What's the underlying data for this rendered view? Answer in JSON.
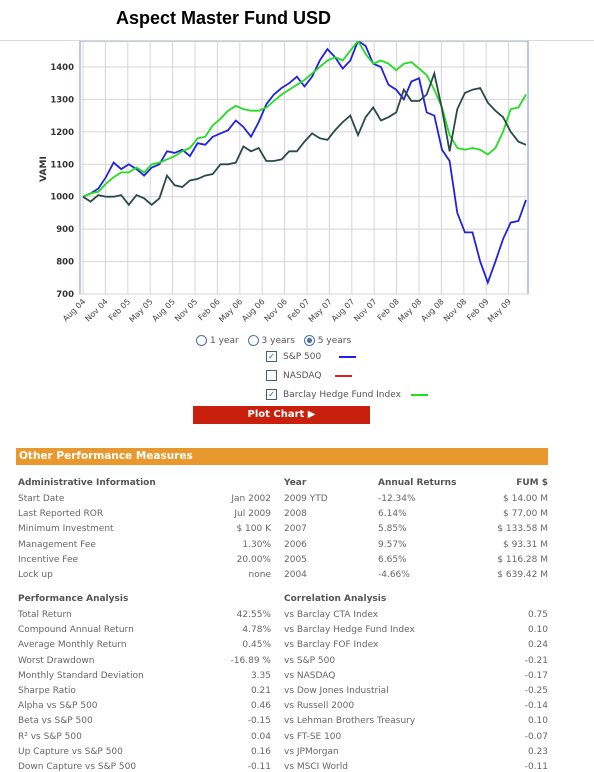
{
  "title": "Aspect Master Fund USD",
  "chart_data": {
    "type": "line",
    "ylabel": "VAMI",
    "ylim": [
      700,
      1480
    ],
    "yticks": [
      700,
      800,
      900,
      1000,
      1100,
      1200,
      1300,
      1400
    ],
    "x_labels": [
      "Aug 04",
      "Nov 04",
      "Feb 05",
      "May 05",
      "Aug 05",
      "Nov 05",
      "Feb 06",
      "May 06",
      "Aug 06",
      "Nov 06",
      "Feb 07",
      "May 07",
      "Aug 07",
      "Nov 07",
      "Feb 08",
      "May 08",
      "Aug 08",
      "Nov 08",
      "Feb 09",
      "May 09"
    ],
    "grid": true,
    "series": [
      {
        "name": "S&P 500",
        "color": "#2222dd",
        "values": [
          1000,
          1010,
          1025,
          1060,
          1105,
          1085,
          1100,
          1085,
          1065,
          1090,
          1100,
          1140,
          1135,
          1145,
          1125,
          1165,
          1160,
          1185,
          1195,
          1205,
          1235,
          1215,
          1185,
          1230,
          1285,
          1315,
          1335,
          1350,
          1370,
          1340,
          1370,
          1420,
          1455,
          1430,
          1395,
          1420,
          1480,
          1465,
          1410,
          1400,
          1345,
          1330,
          1300,
          1355,
          1365,
          1260,
          1250,
          1145,
          1110,
          950,
          890,
          890,
          800,
          735,
          800,
          870,
          920,
          925,
          990
        ]
      },
      {
        "name": "Barclay Hedge Fund Index",
        "color": "#22dd22",
        "values": [
          1000,
          1010,
          1015,
          1040,
          1060,
          1075,
          1075,
          1090,
          1075,
          1100,
          1105,
          1115,
          1125,
          1140,
          1150,
          1180,
          1185,
          1220,
          1240,
          1265,
          1280,
          1270,
          1265,
          1265,
          1275,
          1295,
          1315,
          1330,
          1345,
          1360,
          1380,
          1400,
          1420,
          1430,
          1420,
          1450,
          1480,
          1440,
          1410,
          1420,
          1410,
          1390,
          1410,
          1415,
          1395,
          1375,
          1330,
          1275,
          1190,
          1150,
          1145,
          1150,
          1145,
          1130,
          1150,
          1200,
          1270,
          1275,
          1315
        ]
      },
      {
        "name": "Aspect Master Fund USD",
        "color": "#2a4a4a",
        "values": [
          1000,
          985,
          1005,
          1000,
          1000,
          1005,
          975,
          1005,
          995,
          975,
          995,
          1065,
          1035,
          1030,
          1050,
          1055,
          1065,
          1070,
          1100,
          1100,
          1105,
          1155,
          1140,
          1150,
          1110,
          1110,
          1115,
          1140,
          1140,
          1170,
          1195,
          1180,
          1175,
          1205,
          1230,
          1250,
          1190,
          1245,
          1275,
          1235,
          1245,
          1260,
          1330,
          1295,
          1295,
          1315,
          1380,
          1270,
          1140,
          1270,
          1320,
          1330,
          1335,
          1290,
          1265,
          1245,
          1200,
          1170,
          1160
        ]
      }
    ]
  },
  "controls": {
    "ranges": [
      "1 year",
      "3 years",
      "5 years"
    ],
    "legend": [
      {
        "label": "S&P 500",
        "checked": "✓",
        "color": "#2222dd"
      },
      {
        "label": "NASDAQ",
        "checked": "",
        "color": "#dd2222"
      },
      {
        "label": "Barclay Hedge Fund Index",
        "checked": "✓",
        "color": "#22dd22"
      }
    ],
    "plot_button": "Plot Chart ▶"
  },
  "perf": {
    "section_title": "Other Performance Measures",
    "admin_header": "Administrative Information",
    "admin": [
      {
        "label": "Start Date",
        "value": "Jan 2002"
      },
      {
        "label": "Last Reported ROR",
        "value": "Jul 2009"
      },
      {
        "label": "Minimum Investment",
        "value": "$ 100 K"
      },
      {
        "label": "Management Fee",
        "value": "1.30%"
      },
      {
        "label": "Incentive Fee",
        "value": "20.00%"
      },
      {
        "label": "Lock up",
        "value": "none"
      }
    ],
    "year_header": "Year",
    "returns_header": "Annual Returns",
    "fum_header": "FUM $",
    "annual": [
      {
        "year": "2009 YTD",
        "ret": "-12.34%",
        "fum": "$ 14.00 M"
      },
      {
        "year": "2008",
        "ret": "6.14%",
        "fum": "$ 77.00 M"
      },
      {
        "year": "2007",
        "ret": "5.85%",
        "fum": "$ 133.58 M"
      },
      {
        "year": "2006",
        "ret": "9.57%",
        "fum": "$ 93.31 M"
      },
      {
        "year": "2005",
        "ret": "6.65%",
        "fum": "$ 116.28 M"
      },
      {
        "year": "2004",
        "ret": "-4.66%",
        "fum": "$ 639.42 M"
      }
    ],
    "analysis_header": "Performance Analysis",
    "analysis": [
      {
        "label": "Total Return",
        "value": "42.55%"
      },
      {
        "label": "Compound Annual Return",
        "value": "4.78%"
      },
      {
        "label": "Average Monthly Return",
        "value": "0.45%"
      },
      {
        "label": "Worst Drawdown",
        "value": "-16.89 %"
      },
      {
        "label": "Monthly Standard Deviation",
        "value": "3.35"
      },
      {
        "label": "Sharpe Ratio",
        "value": "0.21"
      },
      {
        "label": "Alpha vs S&P 500",
        "value": "0.46"
      },
      {
        "label": "Beta vs S&P 500",
        "value": "-0.15"
      },
      {
        "label": "R² vs S&P 500",
        "value": "0.04"
      },
      {
        "label": "Up Capture vs S&P 500",
        "value": "0.16"
      },
      {
        "label": "Down Capture vs S&P 500",
        "value": "-0.11"
      }
    ],
    "corr_header": "Correlation Analysis",
    "correlation": [
      {
        "label": "vs Barclay CTA Index",
        "value": "0.75"
      },
      {
        "label": "vs Barclay Hedge Fund Index",
        "value": "0.10"
      },
      {
        "label": "vs Barclay FOF Index",
        "value": "0.24"
      },
      {
        "label": "vs S&P 500",
        "value": "-0.21"
      },
      {
        "label": "vs NASDAQ",
        "value": "-0.17"
      },
      {
        "label": "vs Dow Jones Industrial",
        "value": "-0.25"
      },
      {
        "label": "vs Russell 2000",
        "value": "-0.14"
      },
      {
        "label": "vs Lehman Brothers Treasury",
        "value": "0.10"
      },
      {
        "label": "vs FT-SE 100",
        "value": "-0.07"
      },
      {
        "label": "vs JPMorgan",
        "value": "0.23"
      },
      {
        "label": "vs MSCI World",
        "value": "-0.11"
      }
    ]
  }
}
